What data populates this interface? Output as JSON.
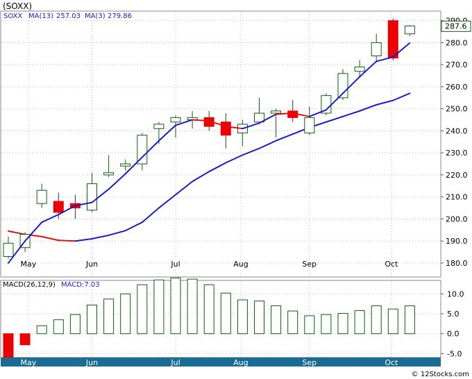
{
  "chart_data": [
    {
      "type": "candlestick",
      "title": "(SOXX)",
      "legend": {
        "symbol": "SOXX",
        "ma_long_label": "MA(13)",
        "ma_long_value": "257.03",
        "ma_short_label": "MA(3)",
        "ma_short_value": "279.86"
      },
      "last_price_label": "287.6",
      "ylim": [
        174,
        294
      ],
      "y_ticks": [
        "180.0",
        "190.0",
        "200.0",
        "210.0",
        "220.0",
        "230.0",
        "240.0",
        "250.0",
        "260.0",
        "270.0",
        "280.0",
        "290.0"
      ],
      "y_tick_values": [
        180,
        190,
        200,
        210,
        220,
        230,
        240,
        250,
        260,
        270,
        280,
        290
      ],
      "x_month_labels": [
        "May",
        "Jun",
        "Jul",
        "Aug",
        "Sep",
        "Oct"
      ],
      "x_month_index": [
        1.2,
        5.0,
        10.0,
        13.9,
        18.0,
        22.9
      ],
      "candles": [
        {
          "o": 183,
          "h": 192,
          "l": 182,
          "c": 189
        },
        {
          "o": 187,
          "h": 194,
          "l": 185,
          "c": 193
        },
        {
          "o": 207,
          "h": 216,
          "l": 205,
          "c": 213
        },
        {
          "o": 208,
          "h": 212,
          "l": 200,
          "c": 203
        },
        {
          "o": 207,
          "h": 211,
          "l": 200,
          "c": 205
        },
        {
          "o": 204,
          "h": 221,
          "l": 203,
          "c": 216
        },
        {
          "o": 220,
          "h": 229,
          "l": 219,
          "c": 221
        },
        {
          "o": 224,
          "h": 227,
          "l": 222,
          "c": 225
        },
        {
          "o": 225,
          "h": 239,
          "l": 222,
          "c": 238
        },
        {
          "o": 241,
          "h": 244,
          "l": 234,
          "c": 243
        },
        {
          "o": 244,
          "h": 247,
          "l": 237,
          "c": 246
        },
        {
          "o": 245,
          "h": 249,
          "l": 241,
          "c": 246
        },
        {
          "o": 246,
          "h": 249,
          "l": 240,
          "c": 242
        },
        {
          "o": 244,
          "h": 248,
          "l": 232,
          "c": 238
        },
        {
          "o": 239,
          "h": 245,
          "l": 233,
          "c": 243
        },
        {
          "o": 244,
          "h": 255,
          "l": 243,
          "c": 248
        },
        {
          "o": 248,
          "h": 250,
          "l": 237,
          "c": 249
        },
        {
          "o": 249,
          "h": 254,
          "l": 244,
          "c": 246
        },
        {
          "o": 239,
          "h": 251,
          "l": 238,
          "c": 246
        },
        {
          "o": 248,
          "h": 257,
          "l": 247,
          "c": 256
        },
        {
          "o": 255,
          "h": 268,
          "l": 254,
          "c": 266
        },
        {
          "o": 267,
          "h": 272,
          "l": 264,
          "c": 269
        },
        {
          "o": 274,
          "h": 284,
          "l": 271,
          "c": 280
        },
        {
          "o": 290,
          "h": 291,
          "l": 272,
          "c": 273
        },
        {
          "o": 284,
          "h": 288,
          "l": 283,
          "c": 287.6
        }
      ],
      "ma_long": [
        null,
        null,
        null,
        null,
        null,
        null,
        null,
        null,
        null,
        null,
        null,
        null,
        null,
        null,
        null,
        null,
        null,
        null,
        null,
        null,
        null,
        null,
        null,
        null,
        null
      ],
      "ma_long_series": [
        {
          "x": 0,
          "y": 194.5
        },
        {
          "x": 1,
          "y": 193
        },
        {
          "x": 2,
          "y": 192
        },
        {
          "x": 3,
          "y": 190.3
        },
        {
          "x": 4,
          "y": 190
        },
        {
          "x": 5,
          "y": 191
        },
        {
          "x": 6,
          "y": 192.6
        },
        {
          "x": 7,
          "y": 194.7
        },
        {
          "x": 8,
          "y": 198.5
        },
        {
          "x": 9,
          "y": 205
        },
        {
          "x": 10,
          "y": 211
        },
        {
          "x": 11,
          "y": 217
        },
        {
          "x": 12,
          "y": 221.5
        },
        {
          "x": 13,
          "y": 225.5
        },
        {
          "x": 14,
          "y": 229
        },
        {
          "x": 15,
          "y": 232
        },
        {
          "x": 16,
          "y": 235.5
        },
        {
          "x": 17,
          "y": 238.5
        },
        {
          "x": 18,
          "y": 241.5
        },
        {
          "x": 19,
          "y": 244
        },
        {
          "x": 20,
          "y": 246.5
        },
        {
          "x": 21,
          "y": 249
        },
        {
          "x": 22,
          "y": 251.8
        },
        {
          "x": 23,
          "y": 253.8
        },
        {
          "x": 24,
          "y": 257
        }
      ],
      "ma_long_red_until_index": 4,
      "ma_short_series": [
        {
          "x": 0,
          "y": 180
        },
        {
          "x": 1,
          "y": 190
        },
        {
          "x": 2,
          "y": 198.5
        },
        {
          "x": 3,
          "y": 202
        },
        {
          "x": 4,
          "y": 206
        },
        {
          "x": 5,
          "y": 207.5
        },
        {
          "x": 6,
          "y": 213.5
        },
        {
          "x": 7,
          "y": 220.5
        },
        {
          "x": 8,
          "y": 228
        },
        {
          "x": 9,
          "y": 235.5
        },
        {
          "x": 10,
          "y": 242.5
        },
        {
          "x": 11,
          "y": 245
        },
        {
          "x": 12,
          "y": 244.5
        },
        {
          "x": 13,
          "y": 242
        },
        {
          "x": 14,
          "y": 241
        },
        {
          "x": 15,
          "y": 243.5
        },
        {
          "x": 16,
          "y": 247.5
        },
        {
          "x": 17,
          "y": 248
        },
        {
          "x": 18,
          "y": 246.5
        },
        {
          "x": 19,
          "y": 249.5
        },
        {
          "x": 20,
          "y": 257
        },
        {
          "x": 21,
          "y": 264.5
        },
        {
          "x": 22,
          "y": 271.5
        },
        {
          "x": 23,
          "y": 273.5
        },
        {
          "x": 24,
          "y": 279.9
        }
      ],
      "ma_short_red_segments": [
        [
          11,
          14
        ],
        [
          16,
          18
        ]
      ],
      "colors": {
        "up_body": "#ffffff",
        "up_border": "#0b5e0b",
        "down_body": "#ee0000",
        "ma_long": "#1a1acc",
        "ma_short_up": "#1a1acc",
        "ma_down": "#dd1111",
        "axis_band": "#1b6c93"
      }
    },
    {
      "type": "bar",
      "title": "MACD(26,12,9)",
      "legend_value_label": "MACD:7.03",
      "ylim": [
        -5.8,
        13.2
      ],
      "y_ticks": [
        "10.0",
        "5.0",
        "0.0",
        "-5.0"
      ],
      "y_tick_values": [
        10,
        5,
        0,
        -5
      ],
      "values": [
        -6.0,
        -2.8,
        2.0,
        3.5,
        4.8,
        7.2,
        8.7,
        10.0,
        12.3,
        13.5,
        14.0,
        13.7,
        12.3,
        10.2,
        8.5,
        8.2,
        7.0,
        5.7,
        4.5,
        4.8,
        5.1,
        5.8,
        7.0,
        6.2,
        7.0
      ],
      "colors": {
        "positive_border": "#0b5e0b",
        "negative_body": "#ee0000"
      }
    }
  ],
  "footer": {
    "copyright": "© 12Stocks.com"
  }
}
